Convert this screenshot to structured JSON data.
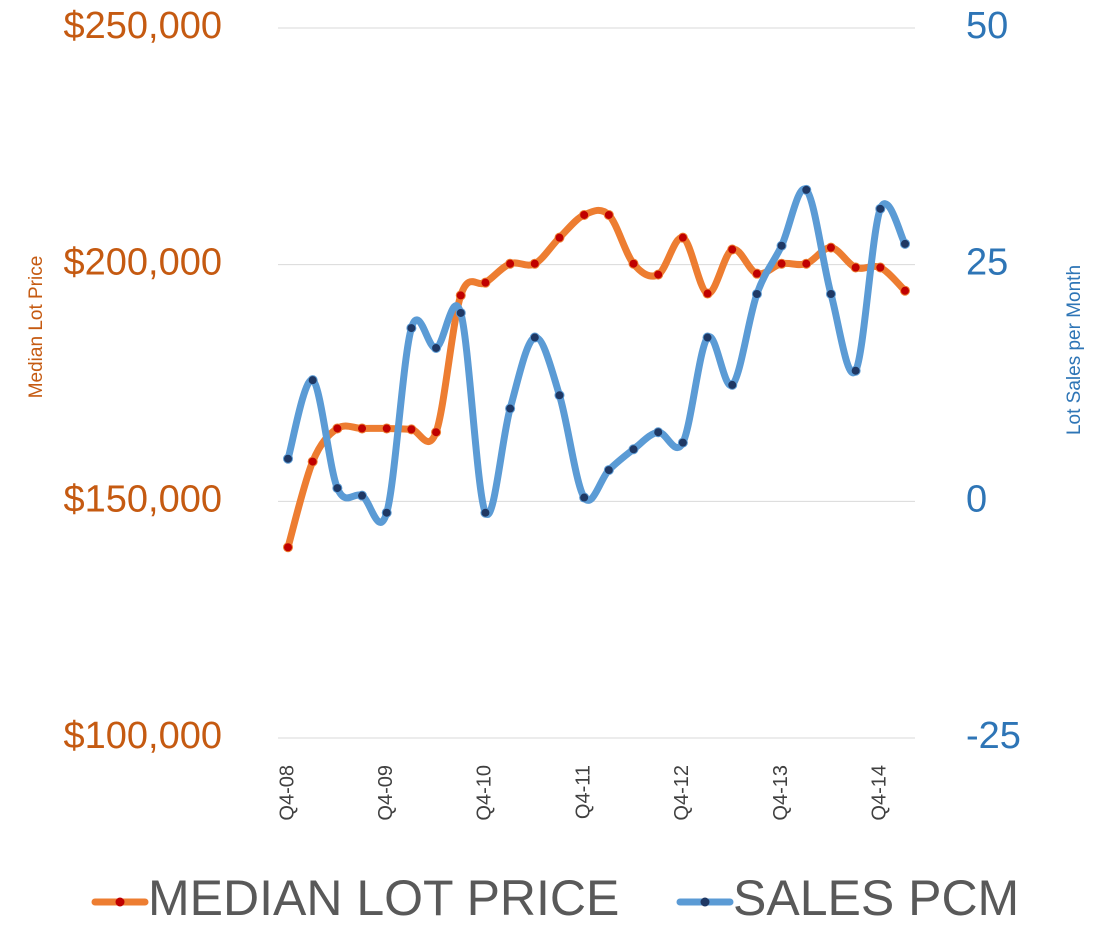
{
  "chart_data": {
    "type": "line",
    "y_label": "Median Lot Price",
    "y2_label": "Lot Sales per Month",
    "categories": [
      "Q4-08",
      null,
      null,
      null,
      "Q4-09",
      null,
      null,
      null,
      "Q4-10",
      null,
      null,
      null,
      "Q4-11",
      null,
      null,
      null,
      "Q4-12",
      null,
      null,
      null,
      "Q4-13",
      null,
      null,
      null,
      "Q4-14",
      null
    ],
    "series": [
      {
        "name": "MEDIAN LOT PRICE",
        "color": "#ED7D31",
        "marker_color": "#C00000",
        "values": [
          140300,
          158400,
          165400,
          165400,
          165400,
          165200,
          164600,
          193500,
          196200,
          200200,
          200200,
          205700,
          210500,
          210500,
          200200,
          197900,
          205700,
          193900,
          203200,
          198100,
          200200,
          200200,
          203600,
          199400,
          199400,
          194500
        ]
      },
      {
        "name": "SALES PCM",
        "color": "#5B9BD5",
        "marker_color": "#1F3864",
        "axis": "y2",
        "values": [
          4.5,
          12.8,
          1.4,
          0.6,
          -1.2,
          18.3,
          16.2,
          19.9,
          -1.2,
          9.8,
          17.3,
          11.2,
          0.4,
          3.3,
          5.5,
          7.3,
          6.2,
          17.3,
          12.3,
          21.9,
          27.0,
          32.9,
          21.9,
          13.8,
          30.9,
          27.2
        ]
      }
    ],
    "ylim": [
      100000,
      250000
    ],
    "yticks": [
      {
        "value": 100000,
        "label": "$100,000"
      },
      {
        "value": 150000,
        "label": "$150,000"
      },
      {
        "value": 200000,
        "label": "$200,000"
      },
      {
        "value": 250000,
        "label": "$250,000"
      }
    ],
    "y2lim": [
      -25,
      50
    ],
    "y2ticks": [
      -25,
      0,
      25,
      50
    ],
    "grid": true,
    "legend": "bottom"
  }
}
